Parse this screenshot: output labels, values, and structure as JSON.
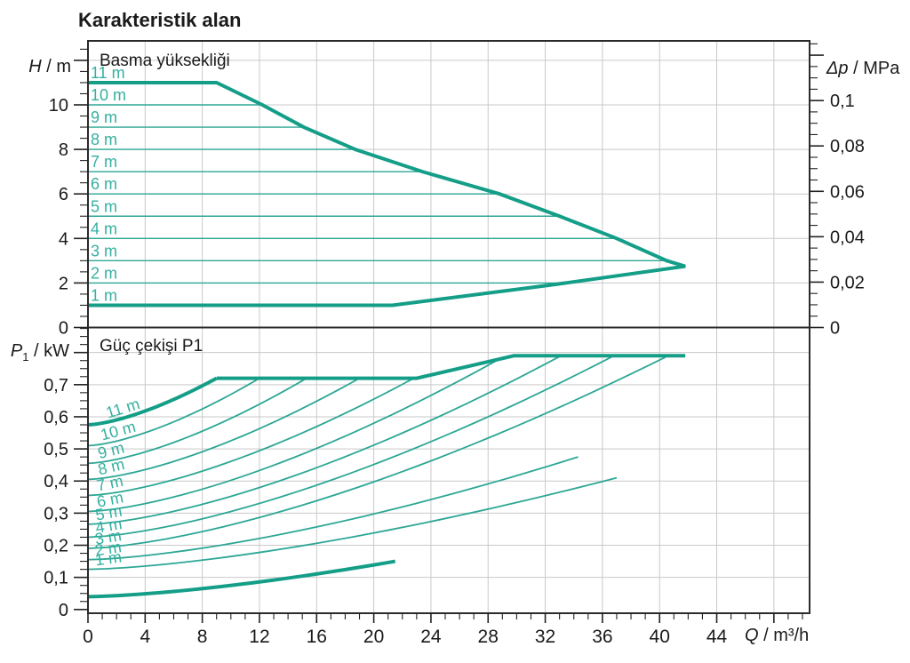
{
  "title": "Karakteristik alan",
  "colors": {
    "curve_thick": "#149e88",
    "curve_thin": "#2ca795",
    "curve_label": "#35b0a0",
    "grid": "#c9c9c9",
    "frame": "#2b2b2b",
    "tick": "#222222",
    "text": "#1a1a1a"
  },
  "chart_data": {
    "type": "line",
    "x_axis": {
      "label_main": "Q",
      "label_rest": " / m³/h",
      "min": 0,
      "max": 50.5,
      "major_step": 4,
      "minor_step": 1,
      "tick_values": [
        0,
        4,
        8,
        12,
        16,
        20,
        24,
        28,
        32,
        36,
        40,
        44
      ],
      "tick_labels": [
        "0",
        "4",
        "8",
        "12",
        "16",
        "20",
        "24",
        "28",
        "32",
        "36",
        "40",
        "44"
      ]
    },
    "top_chart": {
      "inner_title": "Basma yüksekliği",
      "y_left": {
        "label_main": "H",
        "label_rest": " / m",
        "min": 0,
        "max": 12.9,
        "major_step": 2,
        "minor_step": 0.5,
        "tick_values": [
          0,
          2,
          4,
          6,
          8,
          10
        ],
        "tick_labels": [
          "0",
          "2",
          "4",
          "6",
          "8",
          "10"
        ]
      },
      "y_right": {
        "label_main": "Δp",
        "label_rest": " / MPa",
        "min": 0,
        "max": 0.125,
        "major_step": 0.02,
        "minor_step": 0.005,
        "m_per_mpa": 101.94,
        "tick_values": [
          0,
          0.02,
          0.04,
          0.06,
          0.08,
          0.1
        ],
        "tick_labels": [
          "0",
          "0,02",
          "0,04",
          "0,06",
          "0,08",
          "0,1"
        ]
      },
      "envelope_upper_q_h": [
        [
          0,
          11
        ],
        [
          9,
          11
        ],
        [
          12.2,
          10
        ],
        [
          15.1,
          9
        ],
        [
          18.7,
          8
        ],
        [
          23.4,
          7
        ],
        [
          28.8,
          6
        ],
        [
          33,
          5
        ],
        [
          37,
          4
        ],
        [
          40.5,
          3
        ],
        [
          41.8,
          2.75
        ]
      ],
      "envelope_lower_q_h": [
        [
          0,
          1
        ],
        [
          21.3,
          1
        ],
        [
          32.3,
          1.9
        ],
        [
          41.8,
          2.75
        ]
      ],
      "iso_head_lines": [
        {
          "head_m": 10,
          "q_end": 12.2
        },
        {
          "head_m": 9,
          "q_end": 15.1
        },
        {
          "head_m": 8,
          "q_end": 18.7
        },
        {
          "head_m": 7,
          "q_end": 23.4
        },
        {
          "head_m": 6,
          "q_end": 28.8
        },
        {
          "head_m": 5,
          "q_end": 33
        },
        {
          "head_m": 4,
          "q_end": 37
        },
        {
          "head_m": 3,
          "q_end": 40.5
        },
        {
          "head_m": 2,
          "q_end": 34
        }
      ],
      "line_labels": [
        {
          "text": "11 m",
          "head_m": 11
        },
        {
          "text": "10 m",
          "head_m": 10
        },
        {
          "text": "9 m",
          "head_m": 9
        },
        {
          "text": "8 m",
          "head_m": 8
        },
        {
          "text": "7 m",
          "head_m": 7
        },
        {
          "text": "6 m",
          "head_m": 6
        },
        {
          "text": "5 m",
          "head_m": 5
        },
        {
          "text": "4 m",
          "head_m": 4
        },
        {
          "text": "3 m",
          "head_m": 3
        },
        {
          "text": "2 m",
          "head_m": 2
        },
        {
          "text": "1 m",
          "head_m": 1
        }
      ]
    },
    "bottom_chart": {
      "inner_title": "Güç çekişi P1",
      "y_left": {
        "label_main": "P",
        "label_sub": "1",
        "label_rest": " / kW",
        "min": 0,
        "max": 0.88,
        "major_step": 0.1,
        "minor_step": 0.025,
        "tick_values": [
          0,
          0.1,
          0.2,
          0.3,
          0.4,
          0.5,
          0.6,
          0.7
        ],
        "tick_labels": [
          "0",
          "0,1",
          "0,2",
          "0,3",
          "0,4",
          "0,5",
          "0,6",
          "0,7"
        ]
      },
      "power_envelope_q_kw": [
        [
          9,
          0.72
        ],
        [
          23,
          0.72
        ],
        [
          29.8,
          0.79
        ],
        [
          41.8,
          0.79
        ]
      ],
      "power_curves": [
        {
          "label": "11 m",
          "p_start_kw": 0.575,
          "q_end": 9,
          "p_end_kw": 0.72,
          "thick": true,
          "label_q": 1.4,
          "label_angle": -17
        },
        {
          "label": "10 m",
          "p_start_kw": 0.51,
          "q_end": 12,
          "p_end_kw": 0.72,
          "thick": false,
          "label_q": 1.0,
          "label_angle": -15
        },
        {
          "label": "9 m",
          "p_start_kw": 0.455,
          "q_end": 15.3,
          "p_end_kw": 0.72,
          "thick": false,
          "label_q": 0.8,
          "label_angle": -14
        },
        {
          "label": "8 m",
          "p_start_kw": 0.405,
          "q_end": 19,
          "p_end_kw": 0.72,
          "thick": false,
          "label_q": 0.8,
          "label_angle": -13
        },
        {
          "label": "7 m",
          "p_start_kw": 0.355,
          "q_end": 22.8,
          "p_end_kw": 0.72,
          "thick": false,
          "label_q": 0.7,
          "label_angle": -12
        },
        {
          "label": "6 m",
          "p_start_kw": 0.305,
          "q_end": 29,
          "p_end_kw": 0.785,
          "thick": false,
          "label_q": 0.7,
          "label_angle": -11
        },
        {
          "label": "5 m",
          "p_start_kw": 0.265,
          "q_end": 33.1,
          "p_end_kw": 0.79,
          "thick": false,
          "label_q": 0.6,
          "label_angle": -10
        },
        {
          "label": "4 m",
          "p_start_kw": 0.225,
          "q_end": 36.8,
          "p_end_kw": 0.79,
          "thick": false,
          "label_q": 0.6,
          "label_angle": -10
        },
        {
          "label": "3 m",
          "p_start_kw": 0.19,
          "q_end": 40.6,
          "p_end_kw": 0.79,
          "thick": false,
          "label_q": 0.55,
          "label_angle": -9
        },
        {
          "label": "2 m",
          "p_start_kw": 0.155,
          "q_end": 34.3,
          "p_end_kw": 0.475,
          "thick": false,
          "label_q": 0.55,
          "label_angle": -9
        },
        {
          "label": "1 m",
          "p_start_kw": 0.125,
          "q_end": 37,
          "p_end_kw": 0.41,
          "thick": false,
          "label_q": 0.55,
          "label_angle": -8
        }
      ],
      "min_power_curve": {
        "p_start_kw": 0.04,
        "q_end": 21.5,
        "p_end_kw": 0.15,
        "thick": true
      }
    }
  }
}
